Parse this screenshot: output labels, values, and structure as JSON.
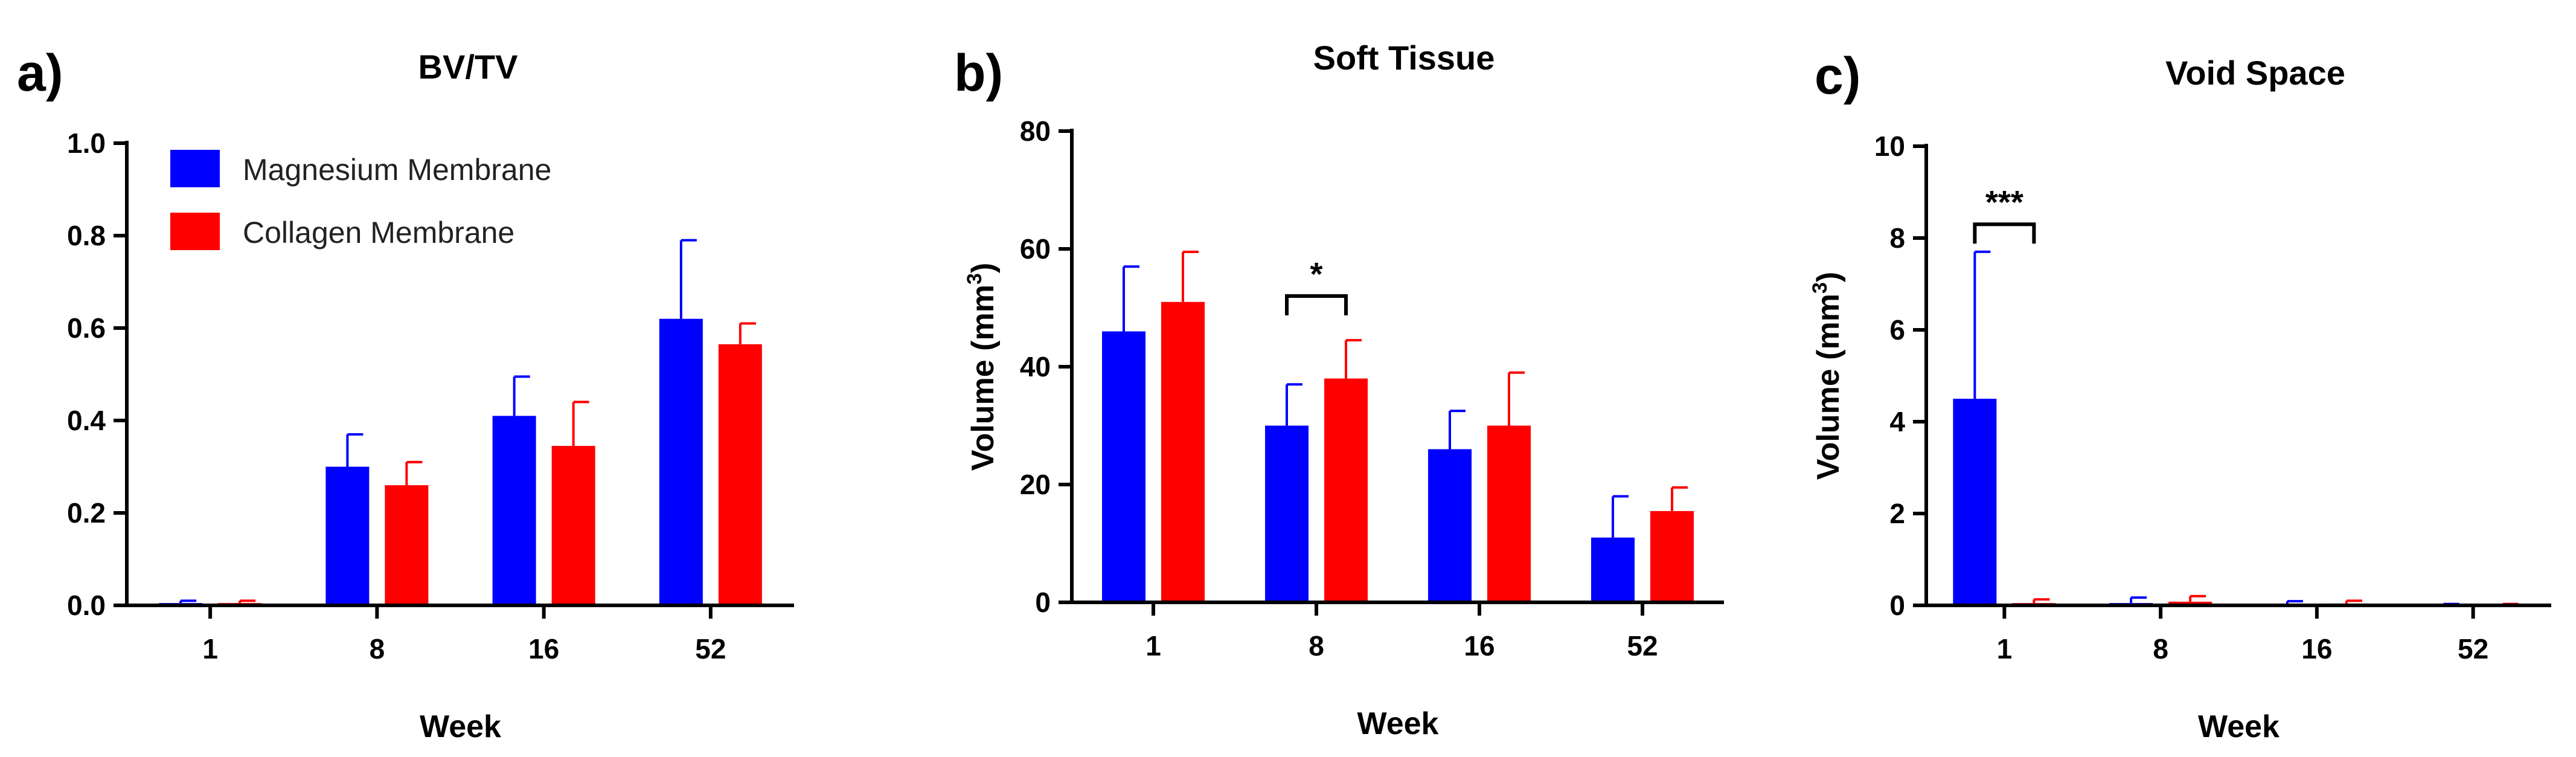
{
  "colors": {
    "magnesium": "#0000ff",
    "collagen": "#ff0000",
    "axis": "#000000"
  },
  "chart_data": [
    {
      "panel_label": "a)",
      "type": "bar",
      "title": "BV/TV",
      "xlabel": "Week",
      "ylabel": "",
      "categories": [
        "1",
        "8",
        "16",
        "52"
      ],
      "ylim": [
        0,
        1.0
      ],
      "yticks": [
        "0.0",
        "0.2",
        "0.4",
        "0.6",
        "0.8",
        "1.0"
      ],
      "series": [
        {
          "name": "Magnesium Membrane",
          "color": "#0000ff",
          "values": [
            0.005,
            0.3,
            0.41,
            0.62
          ],
          "errors": [
            0.005,
            0.07,
            0.085,
            0.17
          ]
        },
        {
          "name": "Collagen Membrane",
          "color": "#ff0000",
          "values": [
            0.005,
            0.26,
            0.345,
            0.565
          ],
          "errors": [
            0.005,
            0.05,
            0.095,
            0.045
          ]
        }
      ],
      "legend": {
        "position": "top-left",
        "entries": [
          "Magnesium Membrane",
          "Collagen Membrane"
        ]
      },
      "significance": []
    },
    {
      "panel_label": "b)",
      "type": "bar",
      "title": "Soft Tissue",
      "xlabel": "Week",
      "ylabel": "Volume (mm",
      "ylabel_sup": "3",
      "ylabel_end": ")",
      "categories": [
        "1",
        "8",
        "16",
        "52"
      ],
      "ylim": [
        0,
        80
      ],
      "yticks": [
        "0",
        "20",
        "40",
        "60",
        "80"
      ],
      "series": [
        {
          "name": "Magnesium Membrane",
          "color": "#0000ff",
          "values": [
            46,
            30,
            26,
            11
          ],
          "errors": [
            11,
            7,
            6.5,
            7
          ]
        },
        {
          "name": "Collagen Membrane",
          "color": "#ff0000",
          "values": [
            51,
            38,
            30,
            15.5
          ],
          "errors": [
            8.5,
            6.5,
            9,
            4
          ]
        }
      ],
      "significance": [
        {
          "category": "8",
          "label": "*",
          "bracket_y": 52
        }
      ]
    },
    {
      "panel_label": "c)",
      "type": "bar",
      "title": "Void Space",
      "xlabel": "Week",
      "ylabel": "Volume (mm",
      "ylabel_sup": "3",
      "ylabel_end": ")",
      "categories": [
        "1",
        "8",
        "16",
        "52"
      ],
      "ylim": [
        0,
        10
      ],
      "yticks": [
        "0",
        "2",
        "4",
        "6",
        "8",
        "10"
      ],
      "series": [
        {
          "name": "Magnesium Membrane",
          "color": "#0000ff",
          "values": [
            4.5,
            0.05,
            0.03,
            0.01
          ],
          "errors": [
            3.2,
            0.12,
            0.06,
            0.02
          ]
        },
        {
          "name": "Collagen Membrane",
          "color": "#ff0000",
          "values": [
            0.05,
            0.08,
            0.04,
            0.01
          ],
          "errors": [
            0.08,
            0.12,
            0.06,
            0.02
          ]
        }
      ],
      "significance": [
        {
          "category": "1",
          "label": "***",
          "bracket_y": 8.3
        }
      ]
    }
  ]
}
